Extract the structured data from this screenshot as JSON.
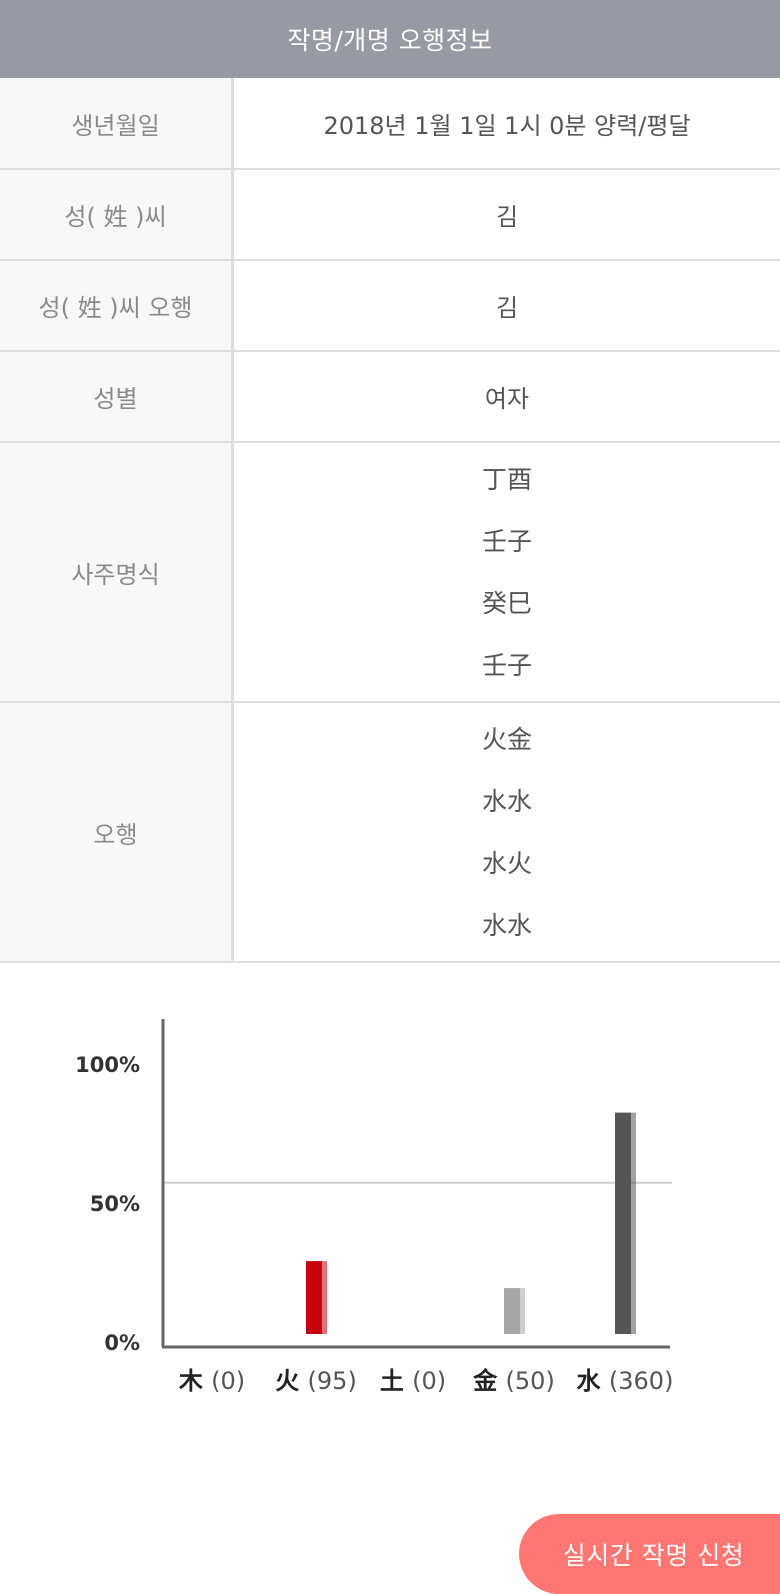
{
  "header": {
    "title": "작명/개명 오행정보"
  },
  "info": {
    "birth_label": "생년월일",
    "birth_value": "2018년 1월 1일 1시 0분 양력/평달",
    "surname_label": "성( 姓 )씨",
    "surname_value": "김",
    "surname_element_label": "성( 姓 )씨 오행",
    "surname_element_value": "김",
    "gender_label": "성별",
    "gender_value": "여자",
    "saju_label": "사주명식",
    "saju_values": [
      "丁酉",
      "壬子",
      "癸巳",
      "壬子"
    ],
    "ohaeng_label": "오행",
    "ohaeng_values": [
      "火金",
      "水水",
      "水火",
      "水水"
    ]
  },
  "chart_data": {
    "type": "bar",
    "categories": [
      "木",
      "火",
      "土",
      "金",
      "水"
    ],
    "category_values": [
      "(0)",
      "(95)",
      "(0)",
      "(50)",
      "(360)"
    ],
    "values": [
      0,
      27,
      0,
      17,
      82
    ],
    "yticks": [
      "100%",
      "50%",
      "0%"
    ],
    "ylim": [
      0,
      100
    ],
    "grid_line_at": 56,
    "colors": [
      "#888888",
      "#c4000f",
      "#888888",
      "#a6a6a6",
      "#555555"
    ]
  },
  "cta": {
    "label": "실시간 작명 신청"
  }
}
